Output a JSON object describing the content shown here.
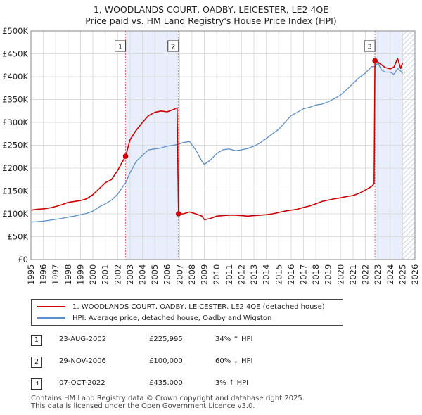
{
  "title_line1": "1, WOODLANDS COURT, OADBY, LEICESTER, LE2 4QE",
  "title_line2": "Price paid vs. HM Land Registry's House Price Index (HPI)",
  "legend": {
    "property_label": "1, WOODLANDS COURT, OADBY, LEICESTER, LE2 4QE (detached house)",
    "hpi_label": "HPI: Average price, detached house, Oadby and Wigston"
  },
  "colors": {
    "property": "#cc0000",
    "hpi": "#5b8fc9",
    "shade": "#e8eefb",
    "hatch": "#c9d3e6"
  },
  "transactions": [
    {
      "num": "1",
      "date": "23-AUG-2002",
      "price": "£225,995",
      "hpi": "34% ↑ HPI"
    },
    {
      "num": "2",
      "date": "29-NOV-2006",
      "price": "£100,000",
      "hpi": "60% ↓ HPI"
    },
    {
      "num": "3",
      "date": "07-OCT-2022",
      "price": "£435,000",
      "hpi": "3% ↑ HPI"
    }
  ],
  "footer_line1": "Contains HM Land Registry data © Crown copyright and database right 2025.",
  "footer_line2": "This data is licensed under the Open Government Licence v3.0.",
  "chart_data": {
    "type": "line",
    "title": "1, WOODLANDS COURT, OADBY, LEICESTER, LE2 4QE",
    "subtitle": "Price paid vs. HM Land Registry's House Price Index (HPI)",
    "xlabel": "",
    "ylabel": "",
    "xlim": [
      1995,
      2026
    ],
    "ylim": [
      0,
      500000
    ],
    "x_ticks": [
      1995,
      1996,
      1997,
      1998,
      1999,
      2000,
      2001,
      2002,
      2003,
      2004,
      2005,
      2006,
      2007,
      2008,
      2009,
      2010,
      2011,
      2012,
      2013,
      2014,
      2015,
      2016,
      2017,
      2018,
      2019,
      2020,
      2021,
      2022,
      2023,
      2024,
      2025,
      2026
    ],
    "y_ticks": [
      0,
      50000,
      100000,
      150000,
      200000,
      250000,
      300000,
      350000,
      400000,
      450000,
      500000
    ],
    "y_tick_labels": [
      "£0",
      "£50K",
      "£100K",
      "£150K",
      "£200K",
      "£250K",
      "£300K",
      "£350K",
      "£400K",
      "£450K",
      "£500K"
    ],
    "grid": true,
    "shaded_ranges": [
      [
        2002.64,
        2006.91
      ],
      [
        2022.77,
        2025.0
      ]
    ],
    "future_hatch_from": 2025.0,
    "sales": [
      {
        "label": "1",
        "x": 2002.64,
        "y": 225995
      },
      {
        "label": "2",
        "x": 2006.91,
        "y": 100000
      },
      {
        "label": "3",
        "x": 2022.77,
        "y": 435000
      }
    ],
    "series": [
      {
        "name": "1, WOODLANDS COURT, OADBY, LEICESTER, LE2 4QE (detached house)",
        "x": [
          1995,
          1995.5,
          1996,
          1996.5,
          1997,
          1997.5,
          1998,
          1998.5,
          1999,
          1999.5,
          2000,
          2000.5,
          2001,
          2001.5,
          2002,
          2002.3,
          2002.64,
          2003,
          2003.5,
          2004,
          2004.5,
          2005,
          2005.5,
          2006,
          2006.5,
          2006.8,
          2006.91,
          2007.3,
          2007.8,
          2008.3,
          2008.8,
          2009.0,
          2009.5,
          2010,
          2010.5,
          2011,
          2011.5,
          2012,
          2012.5,
          2013,
          2013.5,
          2014,
          2014.5,
          2015,
          2015.5,
          2016,
          2016.5,
          2017,
          2017.5,
          2018,
          2018.5,
          2019,
          2019.5,
          2020,
          2020.5,
          2021,
          2021.5,
          2022,
          2022.5,
          2022.7,
          2022.77,
          2023.0,
          2023.3,
          2023.6,
          2024.0,
          2024.3,
          2024.6,
          2024.85,
          2025.0
        ],
        "y": [
          108000,
          110000,
          111000,
          113000,
          116000,
          120000,
          125000,
          127000,
          129000,
          133000,
          142000,
          155000,
          168000,
          175000,
          195000,
          210000,
          225995,
          262000,
          283000,
          300000,
          315000,
          322000,
          325000,
          323000,
          328000,
          332000,
          100000,
          100000,
          104000,
          100000,
          95000,
          87000,
          90000,
          95000,
          96000,
          97000,
          97000,
          96000,
          95000,
          96000,
          97000,
          98000,
          100000,
          103000,
          106000,
          108000,
          110000,
          114000,
          117000,
          122000,
          127000,
          130000,
          133000,
          135000,
          138000,
          140000,
          145000,
          152000,
          160000,
          166000,
          435000,
          432000,
          426000,
          420000,
          417000,
          421000,
          440000,
          418000,
          430000
        ]
      },
      {
        "name": "HPI: Average price, detached house, Oadby and Wigston",
        "x": [
          1995,
          1995.5,
          1996,
          1996.5,
          1997,
          1997.5,
          1998,
          1998.5,
          1999,
          1999.5,
          2000,
          2000.5,
          2001,
          2001.5,
          2002,
          2002.64,
          2003,
          2003.5,
          2004,
          2004.5,
          2005,
          2005.5,
          2006,
          2006.5,
          2006.91,
          2007.3,
          2007.8,
          2008.3,
          2008.8,
          2009.0,
          2009.5,
          2010,
          2010.5,
          2011,
          2011.5,
          2012,
          2012.5,
          2013,
          2013.5,
          2014,
          2014.5,
          2015,
          2015.5,
          2016,
          2016.5,
          2017,
          2017.5,
          2018,
          2018.5,
          2019,
          2019.5,
          2020,
          2020.5,
          2021,
          2021.5,
          2022,
          2022.5,
          2022.77,
          2023.0,
          2023.3,
          2023.6,
          2024.0,
          2024.3,
          2024.6,
          2024.85,
          2025.0
        ],
        "y": [
          82000,
          83000,
          84000,
          86000,
          88000,
          90000,
          93000,
          95000,
          98000,
          101000,
          106000,
          115000,
          122000,
          130000,
          143000,
          168000,
          190000,
          215000,
          228000,
          240000,
          242000,
          244000,
          248000,
          250000,
          252000,
          256000,
          258000,
          240000,
          215000,
          208000,
          218000,
          232000,
          240000,
          242000,
          238000,
          240000,
          243000,
          248000,
          255000,
          265000,
          275000,
          285000,
          300000,
          315000,
          322000,
          330000,
          333000,
          338000,
          340000,
          345000,
          352000,
          360000,
          372000,
          385000,
          398000,
          408000,
          422000,
          422000,
          430000,
          415000,
          410000,
          410000,
          405000,
          418000,
          412000,
          407000
        ]
      }
    ]
  }
}
